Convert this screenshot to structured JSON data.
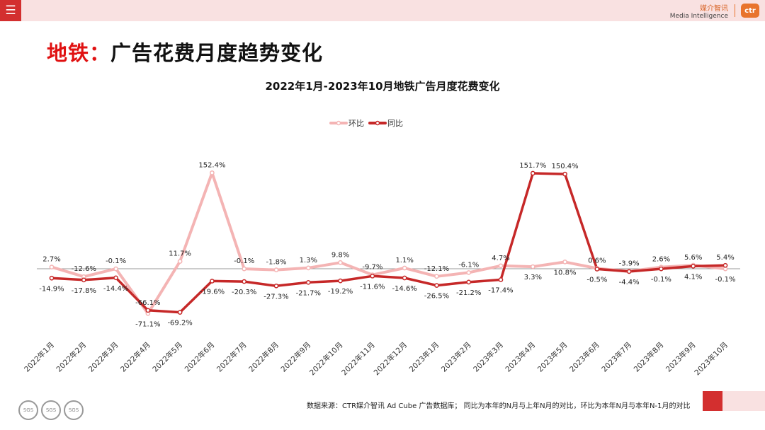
{
  "header": {
    "menu_icon": "menu-icon",
    "brand_cn": "媒介智讯",
    "brand_en": "Media Intelligence",
    "brand_logo": "ctr",
    "background_color": "#f9e1e1",
    "accent_color": "#d32f2f"
  },
  "page": {
    "title_accent": "地铁：",
    "title_rest": "广告花费月度趋势变化"
  },
  "footer": {
    "note": "数据来源：CTR媒介智讯 Ad Cube 广告数据库； 同比为本年的N月与上年N月的对比，环比为本年N月与本年N-1月的对比",
    "badge_text": "SGS"
  },
  "chart_data": {
    "type": "line",
    "title": "2022年1月-2023年10月地铁广告月度花费变化",
    "categories": [
      "2022年1月",
      "2022年2月",
      "2022年3月",
      "2022年4月",
      "2022年5月",
      "2022年6月",
      "2022年7月",
      "2022年8月",
      "2022年9月",
      "2022年10月",
      "2022年11月",
      "2022年12月",
      "2023年1月",
      "2023年2月",
      "2023年3月",
      "2023年4月",
      "2023年5月",
      "2023年6月",
      "2023年7月",
      "2023年8月",
      "2023年9月",
      "2023年10月"
    ],
    "series": [
      {
        "name": "环比",
        "color": "#f4b4b4",
        "values": [
          2.7,
          -12.6,
          -0.1,
          -71.1,
          11.7,
          152.4,
          -0.1,
          -1.8,
          1.3,
          9.8,
          -9.7,
          1.1,
          -12.1,
          -6.1,
          4.7,
          3.3,
          10.8,
          0.6,
          -3.9,
          2.6,
          5.6,
          -0.1
        ],
        "labels": [
          "2.7%",
          "-12.6%",
          "-0.1%",
          "-71.1%",
          "11.7%",
          "152.4%",
          "-0.1%",
          "-1.8%",
          "1.3%",
          "9.8%",
          "-9.7%",
          "1.1%",
          "-12.1%",
          "-6.1%",
          "4.7%",
          "3.3%",
          "10.8%",
          "0.6%",
          "-3.9%",
          "2.6%",
          "5.6%",
          "-0.1%"
        ]
      },
      {
        "name": "同比",
        "color": "#c62828",
        "values": [
          -14.9,
          -17.8,
          -14.4,
          -66.1,
          -69.2,
          -19.6,
          -20.3,
          -27.3,
          -21.7,
          -19.2,
          -11.6,
          -14.6,
          -26.5,
          -21.2,
          -17.4,
          151.7,
          150.4,
          -0.5,
          -4.4,
          -0.1,
          4.1,
          5.4
        ],
        "labels": [
          "-14.9%",
          "-17.8%",
          "-14.4%",
          "-66.1%",
          "-69.2%",
          "-19.6%",
          "-20.3%",
          "-27.3%",
          "-21.7%",
          "-19.2%",
          "-11.6%",
          "-14.6%",
          "-26.5%",
          "-21.2%",
          "-17.4%",
          "151.7%",
          "150.4%",
          "-0.5%",
          "-4.4%",
          "-0.1%",
          "4.1%",
          "5.4%"
        ]
      }
    ],
    "legend_position": "top-center",
    "ylim": [
      -75,
      160
    ],
    "zero_line": true,
    "grid": false
  }
}
